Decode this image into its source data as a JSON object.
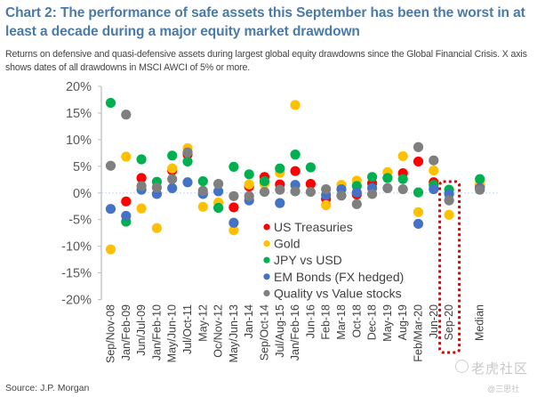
{
  "header": {
    "title": "Chart 2: The performance of safe assets this September has been the worst in at least a decade during a major equity market drawdown",
    "subtitle": "Returns on defensive and quasi-defensive assets during largest global equity drawdowns since the Global Financial Crisis. X axis shows dates of all drawdowns in MSCI AWCI of 5% or more."
  },
  "footer": {
    "source": "Source: J.P. Morgan",
    "watermark": "老虎社区",
    "watermark_handle": "@三思社"
  },
  "chart_data": {
    "type": "scatter",
    "title": "",
    "xlabel": "",
    "ylabel": "",
    "ylim": [
      -20,
      20
    ],
    "yticks": [
      20,
      15,
      10,
      5,
      0,
      -5,
      -10,
      -15,
      -20
    ],
    "ytick_format": "%",
    "grid": false,
    "legend_position": "center-bottom",
    "highlight_category": "Sep-20",
    "categories": [
      "Sep/Nov-08",
      "Jan/Feb-09",
      "Jun/Jul-09",
      "Jan/Feb-10",
      "May/Jun-10",
      "Jul/Oct-11",
      "May-12",
      "Oc/Nov-12",
      "May/Jun-13",
      "Jan-14",
      "Sep/Oct-14",
      "Jul/Aug-15",
      "Jan/Feb-16",
      "Jun-16",
      "Feb-18",
      "Mar-18",
      "Oct-18",
      "Dec-18",
      "May-19",
      "Aug-19",
      "Feb/Mar-20",
      "Jun-20",
      "Sep-20",
      "",
      "Median"
    ],
    "series": [
      {
        "name": "US Treasuries",
        "color": "#ff0000",
        "values": [
          null,
          -1.6,
          2.8,
          null,
          4.2,
          7.2,
          null,
          null,
          -2.7,
          1.2,
          3.0,
          1.6,
          4.1,
          1.7,
          -1.1,
          null,
          -0.3,
          1.8,
          null,
          3.7,
          5.9,
          2.0,
          null,
          null,
          1.3
        ]
      },
      {
        "name": "Gold",
        "color": "#ffc000",
        "values": [
          -10.6,
          6.8,
          -2.9,
          -6.6,
          4.6,
          8.4,
          -2.6,
          -1.8,
          -7.0,
          1.6,
          1.7,
          3.8,
          16.5,
          null,
          -2.3,
          1.5,
          2.3,
          null,
          3.9,
          6.9,
          -3.6,
          4.2,
          -4.1,
          null,
          1.7
        ]
      },
      {
        "name": "JPY vs USD",
        "color": "#00b050",
        "values": [
          16.9,
          -5.4,
          6.3,
          2.1,
          7.0,
          5.9,
          2.2,
          -2.8,
          4.9,
          3.5,
          2.2,
          4.6,
          7.2,
          4.8,
          null,
          null,
          1.3,
          3.0,
          2.8,
          2.6,
          0.1,
          1.5,
          0.6,
          null,
          2.6
        ]
      },
      {
        "name": "EM Bonds (FX hedged)",
        "color": "#4472c4",
        "values": [
          -3.0,
          -4.3,
          0.6,
          -0.2,
          0.9,
          2.0,
          -0.2,
          0.3,
          -5.6,
          -1.4,
          null,
          -1.9,
          1.5,
          null,
          -0.4,
          0.7,
          0.1,
          0.9,
          null,
          null,
          -5.8,
          0.7,
          -0.2,
          null,
          0.9
        ]
      },
      {
        "name": "Quality vs Value stocks",
        "color": "#7f7f7f",
        "values": [
          5.1,
          14.7,
          1.3,
          1.0,
          2.6,
          7.6,
          0.4,
          1.7,
          -0.6,
          -0.6,
          0.2,
          0.6,
          0.3,
          0.2,
          0.7,
          -0.5,
          -2.1,
          -0.2,
          0.9,
          0.7,
          8.6,
          6.1,
          -1.4,
          null,
          0.6
        ]
      }
    ]
  }
}
